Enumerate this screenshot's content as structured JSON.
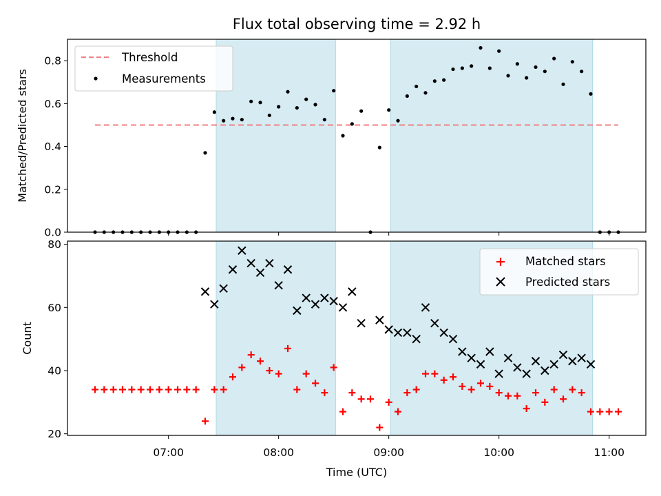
{
  "chart_data": [
    {
      "type": "scatter",
      "title": "Flux total observing time = 2.92 h",
      "xlabel": "",
      "ylabel": "Matched/Predicted stars",
      "xlim": [
        "06:05",
        "11:20"
      ],
      "ylim": [
        0,
        0.9
      ],
      "yticks": [
        0.0,
        0.2,
        0.4,
        0.6,
        0.8
      ],
      "ytick_labels": [
        "0.0",
        "0.2",
        "0.4",
        "0.6",
        "0.8"
      ],
      "shaded_intervals": [
        [
          "07:26",
          "08:31"
        ],
        [
          "09:01",
          "10:51"
        ]
      ],
      "shade_color": "#add8e6",
      "grid": false,
      "legend": {
        "placement": "top-left",
        "entries": [
          {
            "label": "Threshold",
            "marker": "dashed-line",
            "color": "#f08080"
          },
          {
            "label": "Measurements",
            "marker": "dot",
            "color": "#000000"
          }
        ]
      },
      "threshold": {
        "name": "Threshold",
        "value": 0.5,
        "x_range": [
          "06:20",
          "11:05"
        ],
        "color": "#f08080"
      },
      "series": [
        {
          "name": "Measurements",
          "marker": "dot",
          "color": "#000000",
          "x": [
            "06:20",
            "06:25",
            "06:30",
            "06:35",
            "06:40",
            "06:45",
            "06:50",
            "06:55",
            "07:00",
            "07:05",
            "07:10",
            "07:15",
            "07:20",
            "07:25",
            "07:30",
            "07:35",
            "07:40",
            "07:45",
            "07:50",
            "07:55",
            "08:00",
            "08:05",
            "08:10",
            "08:15",
            "08:20",
            "08:25",
            "08:30",
            "08:35",
            "08:40",
            "08:45",
            "08:50",
            "08:55",
            "09:00",
            "09:05",
            "09:10",
            "09:15",
            "09:20",
            "09:25",
            "09:30",
            "09:35",
            "09:40",
            "09:45",
            "09:50",
            "09:55",
            "10:00",
            "10:05",
            "10:10",
            "10:15",
            "10:20",
            "10:25",
            "10:30",
            "10:35",
            "10:40",
            "10:45",
            "10:50",
            "10:55",
            "11:00",
            "11:05"
          ],
          "y": [
            0,
            0,
            0,
            0,
            0,
            0,
            0,
            0,
            0,
            0,
            0,
            0,
            0.37,
            0.56,
            0.52,
            0.53,
            0.525,
            0.61,
            0.605,
            0.545,
            0.585,
            0.655,
            0.58,
            0.62,
            0.595,
            0.525,
            0.66,
            0.45,
            0.505,
            0.565,
            0,
            0.395,
            0.57,
            0.52,
            0.635,
            0.68,
            0.65,
            0.705,
            0.71,
            0.76,
            0.765,
            0.775,
            0.86,
            0.765,
            0.845,
            0.73,
            0.785,
            0.72,
            0.77,
            0.75,
            0.81,
            0.69,
            0.795,
            0.75,
            0.645,
            0,
            0,
            0
          ]
        }
      ]
    },
    {
      "type": "scatter",
      "title": "",
      "xlabel": "Time (UTC)",
      "ylabel": "Count",
      "xlim": [
        "06:05",
        "11:20"
      ],
      "ylim": [
        19.5,
        81
      ],
      "yticks": [
        20,
        40,
        60,
        80
      ],
      "ytick_labels": [
        "20",
        "40",
        "60",
        "80"
      ],
      "xticks": [
        "07:00",
        "08:00",
        "09:00",
        "10:00",
        "11:00"
      ],
      "xtick_labels": [
        "07:00",
        "08:00",
        "09:00",
        "10:00",
        "11:00"
      ],
      "shaded_intervals": [
        [
          "07:26",
          "08:31"
        ],
        [
          "09:01",
          "10:51"
        ]
      ],
      "shade_color": "#add8e6",
      "grid": false,
      "legend": {
        "placement": "top-right",
        "entries": [
          {
            "label": "Matched stars",
            "marker": "plus",
            "color": "#ff0000"
          },
          {
            "label": "Predicted stars",
            "marker": "x",
            "color": "#000000"
          }
        ]
      },
      "series": [
        {
          "name": "Matched stars",
          "marker": "plus",
          "color": "#ff0000",
          "x": [
            "06:20",
            "06:25",
            "06:30",
            "06:35",
            "06:40",
            "06:45",
            "06:50",
            "06:55",
            "07:00",
            "07:05",
            "07:10",
            "07:15",
            "07:20",
            "07:25",
            "07:30",
            "07:35",
            "07:40",
            "07:45",
            "07:50",
            "07:55",
            "08:00",
            "08:05",
            "08:10",
            "08:15",
            "08:20",
            "08:25",
            "08:30",
            "08:35",
            "08:40",
            "08:45",
            "08:50",
            "08:55",
            "09:00",
            "09:05",
            "09:10",
            "09:15",
            "09:20",
            "09:25",
            "09:30",
            "09:35",
            "09:40",
            "09:45",
            "09:50",
            "09:55",
            "10:00",
            "10:05",
            "10:10",
            "10:15",
            "10:20",
            "10:25",
            "10:30",
            "10:35",
            "10:40",
            "10:45",
            "10:50",
            "10:55",
            "11:00",
            "11:05"
          ],
          "y": [
            34,
            34,
            34,
            34,
            34,
            34,
            34,
            34,
            34,
            34,
            34,
            34,
            24,
            34,
            34,
            38,
            41,
            45,
            43,
            40,
            39,
            47,
            34,
            39,
            36,
            33,
            41,
            27,
            33,
            31,
            31,
            22,
            30,
            27,
            33,
            34,
            39,
            39,
            37,
            38,
            35,
            34,
            36,
            35,
            33,
            32,
            32,
            28,
            33,
            30,
            34,
            31,
            34,
            33,
            27,
            27,
            27,
            27
          ]
        },
        {
          "name": "Predicted stars",
          "marker": "x",
          "color": "#000000",
          "x": [
            "07:20",
            "07:25",
            "07:30",
            "07:35",
            "07:40",
            "07:45",
            "07:50",
            "07:55",
            "08:00",
            "08:05",
            "08:10",
            "08:15",
            "08:20",
            "08:25",
            "08:30",
            "08:35",
            "08:40",
            "08:45",
            "08:55",
            "09:00",
            "09:05",
            "09:10",
            "09:15",
            "09:20",
            "09:25",
            "09:30",
            "09:35",
            "09:40",
            "09:45",
            "09:50",
            "09:55",
            "10:00",
            "10:05",
            "10:10",
            "10:15",
            "10:20",
            "10:25",
            "10:30",
            "10:35",
            "10:40",
            "10:45",
            "10:50"
          ],
          "y": [
            65,
            61,
            66,
            72,
            78,
            74,
            71,
            74,
            67,
            72,
            59,
            63,
            61,
            63,
            62,
            60,
            65,
            55,
            56,
            53,
            52,
            52,
            50,
            60,
            55,
            52,
            50,
            46,
            44,
            42,
            46,
            39,
            44,
            41,
            39,
            43,
            40,
            42,
            45,
            43,
            44,
            42
          ]
        }
      ]
    }
  ]
}
